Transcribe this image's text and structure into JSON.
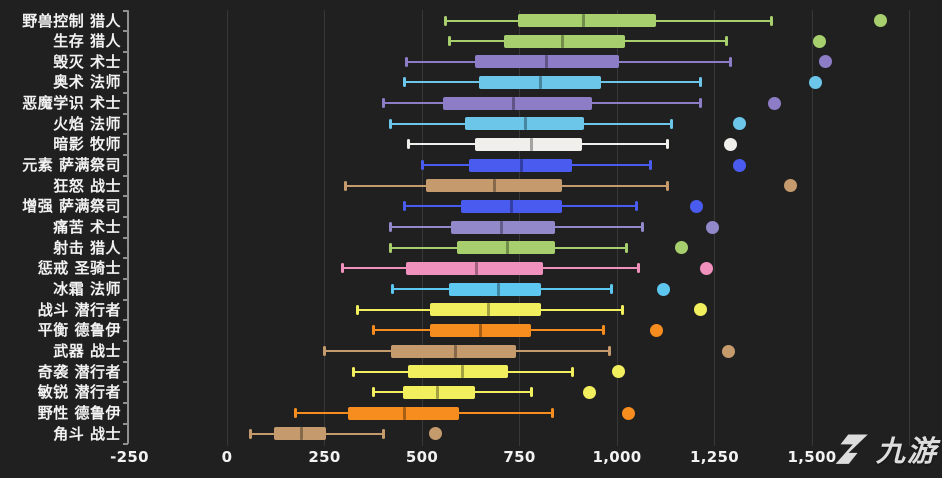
{
  "colors": {
    "background": "#202020",
    "grid": "#383838",
    "axis": "#909090",
    "label": "#f2f2f2",
    "watermark": "#ececec"
  },
  "watermark": {
    "text": "九游",
    "logo": "nine-game-logo"
  },
  "chart_data": {
    "type": "boxplot",
    "orientation": "horizontal",
    "title": "",
    "xlabel": "",
    "ylabel": "",
    "grid": "on",
    "x_axis": {
      "min": -250,
      "max": 1840,
      "tick_values": [
        -250,
        0,
        250,
        500,
        750,
        1000,
        1250,
        1500
      ],
      "tick_labels": [
        "-250",
        "0",
        "250",
        "500",
        "750",
        "1,000",
        "1,250",
        "1,500"
      ],
      "grid_values": [
        0,
        250,
        500,
        750,
        1000,
        1250,
        1500,
        1750
      ]
    },
    "rows": [
      {
        "label": "野兽控制 猎人",
        "color": "#a8cf6d",
        "low": 560,
        "q1": 745,
        "median": 915,
        "q3": 1100,
        "high": 1395,
        "outlier": 1675
      },
      {
        "label": "生存 猎人",
        "color": "#a8cf6d",
        "low": 570,
        "q1": 710,
        "median": 860,
        "q3": 1020,
        "high": 1280,
        "outlier": 1520
      },
      {
        "label": "毁灭 术士",
        "color": "#8d7dc6",
        "low": 460,
        "q1": 635,
        "median": 820,
        "q3": 1005,
        "high": 1290,
        "outlier": 1535
      },
      {
        "label": "奥术 法师",
        "color": "#6bc6ea",
        "low": 455,
        "q1": 645,
        "median": 805,
        "q3": 960,
        "high": 1215,
        "outlier": 1510
      },
      {
        "label": "恶魔学识 术士",
        "color": "#8d7dc6",
        "low": 400,
        "q1": 555,
        "median": 735,
        "q3": 935,
        "high": 1215,
        "outlier": 1405
      },
      {
        "label": "火焰 法师",
        "color": "#6bc6ea",
        "low": 420,
        "q1": 610,
        "median": 765,
        "q3": 915,
        "high": 1140,
        "outlier": 1315
      },
      {
        "label": "暗影 牧师",
        "color": "#f0efec",
        "low": 465,
        "q1": 635,
        "median": 780,
        "q3": 910,
        "high": 1130,
        "outlier": 1290
      },
      {
        "label": "元素 萨满祭司",
        "color": "#4a5cf0",
        "low": 500,
        "q1": 620,
        "median": 755,
        "q3": 885,
        "high": 1085,
        "outlier": 1315
      },
      {
        "label": "狂怒 战士",
        "color": "#c59b6d",
        "low": 305,
        "q1": 510,
        "median": 685,
        "q3": 860,
        "high": 1130,
        "outlier": 1445
      },
      {
        "label": "增强 萨满祭司",
        "color": "#4a5cf0",
        "low": 455,
        "q1": 600,
        "median": 730,
        "q3": 860,
        "high": 1050,
        "outlier": 1205
      },
      {
        "label": "痛苦 术士",
        "color": "#9289cb",
        "low": 420,
        "q1": 575,
        "median": 705,
        "q3": 840,
        "high": 1065,
        "outlier": 1245
      },
      {
        "label": "射击 猎人",
        "color": "#a8cf6d",
        "low": 420,
        "q1": 590,
        "median": 720,
        "q3": 840,
        "high": 1025,
        "outlier": 1165
      },
      {
        "label": "惩戒 圣骑士",
        "color": "#f090bd",
        "low": 295,
        "q1": 460,
        "median": 640,
        "q3": 810,
        "high": 1055,
        "outlier": 1230
      },
      {
        "label": "冰霜 法师",
        "color": "#5ec7ef",
        "low": 425,
        "q1": 570,
        "median": 695,
        "q3": 805,
        "high": 985,
        "outlier": 1120
      },
      {
        "label": "战斗 潜行者",
        "color": "#f2ef5f",
        "low": 335,
        "q1": 520,
        "median": 670,
        "q3": 805,
        "high": 1015,
        "outlier": 1215
      },
      {
        "label": "平衡 德鲁伊",
        "color": "#f78c1f",
        "low": 375,
        "q1": 520,
        "median": 650,
        "q3": 780,
        "high": 965,
        "outlier": 1100
      },
      {
        "label": "武器 战士",
        "color": "#c59b6d",
        "low": 250,
        "q1": 420,
        "median": 585,
        "q3": 740,
        "high": 980,
        "outlier": 1285
      },
      {
        "label": "奇袭 潜行者",
        "color": "#f2ef5f",
        "low": 325,
        "q1": 465,
        "median": 605,
        "q3": 720,
        "high": 885,
        "outlier": 1005
      },
      {
        "label": "敏锐 潜行者",
        "color": "#f2ef5f",
        "low": 375,
        "q1": 450,
        "median": 540,
        "q3": 635,
        "high": 780,
        "outlier": 930
      },
      {
        "label": "野性 德鲁伊",
        "color": "#f78c1f",
        "low": 175,
        "q1": 310,
        "median": 455,
        "q3": 595,
        "high": 835,
        "outlier": 1030
      },
      {
        "label": "角斗 战士",
        "color": "#c59b6d",
        "low": 60,
        "q1": 120,
        "median": 190,
        "q3": 255,
        "high": 400,
        "outlier": 535
      }
    ]
  }
}
